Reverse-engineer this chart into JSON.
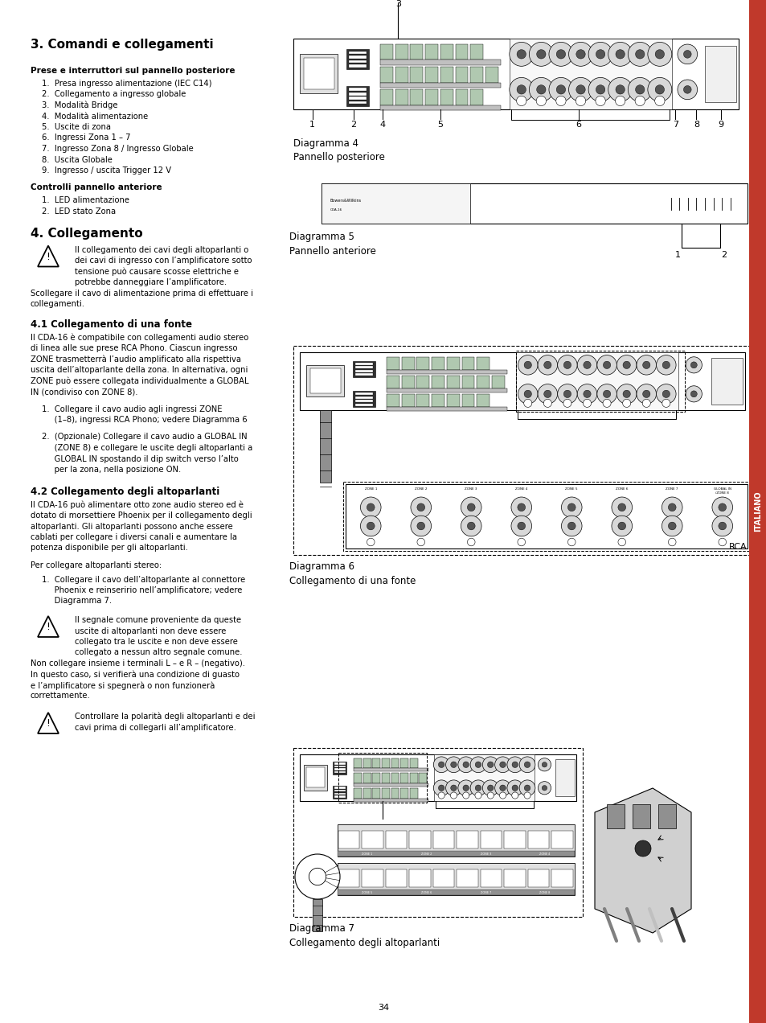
{
  "page_bg": "#ffffff",
  "sidebar_color": "#c0392b",
  "sidebar_text": "ITALIANO",
  "page_number": "34",
  "section3_title": "3. Comandi e collegamenti",
  "prese_title": "Prese e interruttori sul pannello posteriore",
  "prese_items": [
    "1.  Presa ingresso alimentazione (IEC C14)",
    "2.  Collegamento a ingresso globale",
    "3.  Modalità Bridge",
    "4.  Modalità alimentazione",
    "5.  Uscite di zona",
    "6.  Ingressi Zona 1 – 7",
    "7.  Ingresso Zona 8 / Ingresso Globale",
    "8.  Uscita Globale",
    "9.  Ingresso / uscita Trigger 12 V"
  ],
  "controlli_title": "Controlli pannello anteriore",
  "controlli_items": [
    "1.  LED alimentazione",
    "2.  LED stato Zona"
  ],
  "section4_title": "4. Collegamento",
  "warning1_lines": [
    "Il collegamento dei cavi degli altoparlanti o",
    "dei cavi di ingresso con l’amplificatore sotto",
    "tensione può causare scosse elettriche e",
    "potrebbe danneggiare l’amplificatore.",
    "Scollegare il cavo di alimentazione prima di effettuare i",
    "collegamenti."
  ],
  "warning1_indent": [
    true,
    true,
    true,
    true,
    false,
    false
  ],
  "section41_title": "4.1 Collegamento di una fonte",
  "section41_body_lines": [
    "Il CDA-16 è compatibile con collegamenti audio stereo",
    "di linea alle sue prese RCA Phono. Ciascun ingresso",
    "ZONE trasmetterrà l’audio amplificato alla rispettiva",
    "uscita dell’altoparlante della zona. In alternativa, ogni",
    "ZONE può essere collegata individualmente a GLOBAL",
    "IN (condiviso con ZONE 8)."
  ],
  "item41_1_lines": [
    "1.  Collegare il cavo audio agli ingressi ZONE",
    "     (1–8), ingressi RCA Phono; vedere Diagramma 6"
  ],
  "item41_2_lines": [
    "2.  (Opzionale) Collegare il cavo audio a GLOBAL IN",
    "     (ZONE 8) e collegare le uscite degli altoparlanti a",
    "     GLOBAL IN spostando il dip switch verso l’alto",
    "     per la zona, nella posizione ON."
  ],
  "section42_title": "4.2 Collegamento degli altoparlanti",
  "section42_body_lines": [
    "Il CDA-16 può alimentare otto zone audio stereo ed è",
    "dotato di morsettiere Phoenix per il collegamento degli",
    "altoparlanti. Gli altoparlanti possono anche essere",
    "cablati per collegare i diversi canali e aumentare la",
    "potenza disponibile per gli altoparlanti."
  ],
  "per_collegare": "Per collegare altoparlanti stereo:",
  "item42_1_lines": [
    "1.  Collegare il cavo dell’altoparlante al connettore",
    "     Phoenix e reinseririo nell’amplificatore; vedere",
    "     Diagramma 7."
  ],
  "warning2_lines": [
    "Il segnale comune proveniente da queste",
    "uscite di altoparlanti non deve essere",
    "collegato tra le uscite e non deve essere",
    "collegato a nessun altro segnale comune.",
    "Non collegare insieme i terminali L – e R – (negativo).",
    "In questo caso, si verifierà una condizione di guasto",
    "e l’amplificatore si spegnerà o non funzionerà",
    "correttamente."
  ],
  "warning2_indent": [
    true,
    true,
    true,
    true,
    false,
    false,
    false,
    false
  ],
  "warning3_lines": [
    "Controllare la polarità degli altoparlanti e dei",
    "cavi prima di collegarli all’amplificatore."
  ],
  "warning3_indent": [
    true,
    true
  ],
  "diag4_label": "Diagramma 4",
  "diag4_sublabel": "Pannello posteriore",
  "diag5_label": "Diagramma 5",
  "diag5_sublabel": "Pannello anteriore",
  "diag6_label": "Diagramma 6",
  "diag6_sublabel": "Collegamento di una fonte",
  "diag7_label": "Diagramma 7",
  "diag7_sublabel": "Collegamento degli altoparlanti",
  "rca_label": "RCA"
}
